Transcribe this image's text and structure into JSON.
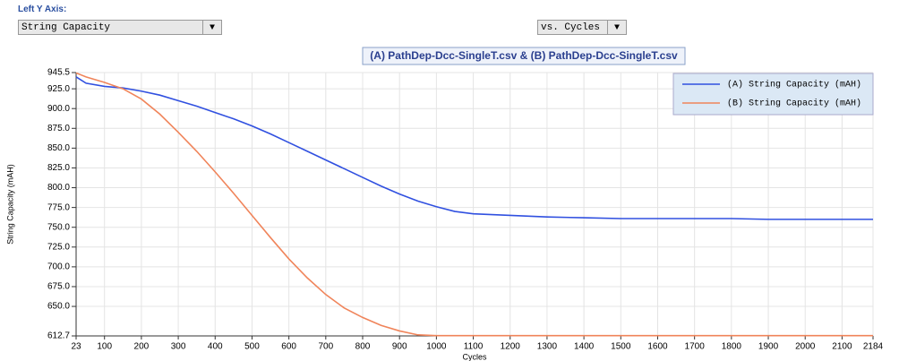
{
  "controls": {
    "left_y_label": "Left Y Axis:",
    "left_y_value": "String Capacity",
    "x_value": "vs. Cycles"
  },
  "chart_data": {
    "type": "line",
    "title": "(A) PathDep-Dcc-SingleT.csv & (B) PathDep-Dcc-SingleT.csv",
    "y_label": "String Capacity (mAH)",
    "x_label": "Cycles",
    "x": [
      23,
      50,
      100,
      150,
      200,
      250,
      300,
      350,
      400,
      450,
      500,
      550,
      600,
      650,
      700,
      750,
      800,
      850,
      900,
      950,
      1000,
      1050,
      1100,
      1150,
      1200,
      1300,
      1400,
      1500,
      1600,
      1700,
      1800,
      1900,
      2000,
      2100,
      2184
    ],
    "series": [
      {
        "name": "(A) String Capacity (mAH)",
        "color": "#3050e0",
        "values": [
          940,
          932,
          928,
          926,
          922,
          917,
          910,
          903,
          895,
          887,
          878,
          868,
          857,
          846,
          835,
          824,
          813,
          802,
          792,
          783,
          776,
          770,
          767,
          766,
          765,
          763,
          762,
          761,
          761,
          761,
          761,
          760,
          760,
          760,
          760
        ]
      },
      {
        "name": "(B) String Capacity (mAH)",
        "color": "#f0845a",
        "values": [
          945,
          940,
          933,
          925,
          912,
          893,
          870,
          846,
          820,
          793,
          765,
          737,
          710,
          686,
          665,
          648,
          636,
          626,
          619,
          614,
          613,
          613,
          613,
          613,
          613,
          613,
          613,
          613,
          613,
          613,
          613,
          613,
          613,
          613,
          613
        ]
      }
    ],
    "xlim": [
      23,
      2184
    ],
    "xticks": [
      23,
      100,
      200,
      300,
      400,
      500,
      600,
      700,
      800,
      900,
      1000,
      1100,
      1200,
      1300,
      1400,
      1500,
      1600,
      1700,
      1800,
      1900,
      2000,
      2100,
      2184
    ],
    "ylim": [
      612.7,
      945.5
    ],
    "yticks": [
      612.7,
      {
        "value": 650,
        "label": "650.0"
      },
      {
        "value": 675,
        "label": "675.0"
      },
      {
        "value": 700,
        "label": "700.0"
      },
      {
        "value": 725,
        "label": "725.0"
      },
      {
        "value": 750,
        "label": "750.0"
      },
      {
        "value": 775,
        "label": "775.0"
      },
      {
        "value": 800,
        "label": "800.0"
      },
      {
        "value": 825,
        "label": "825.0"
      },
      {
        "value": 850,
        "label": "850.0"
      },
      {
        "value": 875,
        "label": "875.0"
      },
      {
        "value": 900,
        "label": "900.0"
      },
      {
        "value": 925,
        "label": "925.0"
      },
      945.5
    ],
    "grid": true,
    "legend": "upper right"
  }
}
